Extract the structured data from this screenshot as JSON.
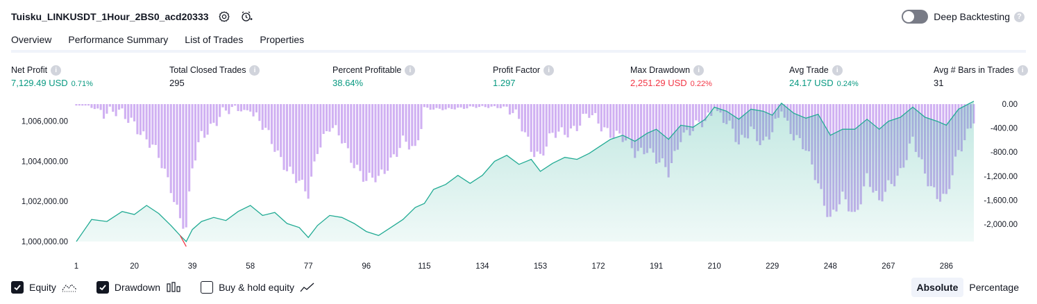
{
  "header": {
    "title": "Tuisku_LINKUSDT_1Hour_2BS0_acd20333",
    "settings_icon": "gear-icon",
    "alert_icon": "alarm-add-icon"
  },
  "deep_backtesting": {
    "label": "Deep Backtesting",
    "enabled": false,
    "help": "?"
  },
  "tabs": [
    {
      "label": "Overview",
      "active": true
    },
    {
      "label": "Performance Summary",
      "active": false
    },
    {
      "label": "List of Trades",
      "active": false
    },
    {
      "label": "Properties",
      "active": false
    }
  ],
  "stats": {
    "net_profit": {
      "label": "Net Profit",
      "value": "7,129.49 USD",
      "pct": "0.71%"
    },
    "total_closed_trades": {
      "label": "Total Closed Trades",
      "value": "295"
    },
    "percent_profitable": {
      "label": "Percent Profitable",
      "value": "38.64%"
    },
    "profit_factor": {
      "label": "Profit Factor",
      "value": "1.297"
    },
    "max_drawdown": {
      "label": "Max Drawdown",
      "value": "2,251.29 USD",
      "pct": "0.22%"
    },
    "avg_trade": {
      "label": "Avg Trade",
      "value": "24.17 USD",
      "pct": "0.24%"
    },
    "avg_bars": {
      "label": "Avg # Bars in Trades",
      "value": "31"
    }
  },
  "chart_data": {
    "type": "area",
    "x_ticks": [
      "1",
      "20",
      "39",
      "58",
      "77",
      "96",
      "115",
      "134",
      "153",
      "172",
      "191",
      "210",
      "229",
      "248",
      "267",
      "286"
    ],
    "left_ticks": [
      "1,006,000.00",
      "1,004,000.00",
      "1,002,000.00",
      "1,000,000.00"
    ],
    "left_tick_values": [
      1006000,
      1004000,
      1002000,
      1000000
    ],
    "right_ticks": [
      "0.00",
      "-400.00",
      "-800.00",
      "-1,200.00",
      "-1,600.00",
      "-2,000.00"
    ],
    "right_tick_values": [
      0,
      -400,
      -800,
      -1200,
      -1600,
      -2000
    ],
    "xlim": [
      1,
      295
    ],
    "equity_ylim": [
      1000000,
      1007200
    ],
    "drawdown_ylim": [
      -2150,
      0
    ],
    "series": [
      {
        "name": "Equity",
        "points": [
          [
            1,
            1000000
          ],
          [
            6,
            1001100
          ],
          [
            11,
            1001000
          ],
          [
            16,
            1001500
          ],
          [
            20,
            1001350
          ],
          [
            24,
            1001800
          ],
          [
            28,
            1001400
          ],
          [
            32,
            1000800
          ],
          [
            35,
            1000300
          ],
          [
            37,
            999750
          ],
          [
            39,
            1000600
          ],
          [
            42,
            1001000
          ],
          [
            46,
            1001200
          ],
          [
            50,
            1001050
          ],
          [
            54,
            1001500
          ],
          [
            58,
            1001800
          ],
          [
            62,
            1001300
          ],
          [
            66,
            1001450
          ],
          [
            70,
            1000900
          ],
          [
            74,
            1000700
          ],
          [
            77,
            1000200
          ],
          [
            80,
            1000800
          ],
          [
            84,
            1001300
          ],
          [
            88,
            1001200
          ],
          [
            92,
            1000900
          ],
          [
            96,
            1000500
          ],
          [
            100,
            1000300
          ],
          [
            104,
            1000700
          ],
          [
            108,
            1001100
          ],
          [
            112,
            1001700
          ],
          [
            115,
            1001900
          ],
          [
            118,
            1002600
          ],
          [
            122,
            1002850
          ],
          [
            126,
            1003300
          ],
          [
            130,
            1002900
          ],
          [
            134,
            1003300
          ],
          [
            138,
            1004000
          ],
          [
            142,
            1004300
          ],
          [
            146,
            1003850
          ],
          [
            150,
            1004100
          ],
          [
            153,
            1003500
          ],
          [
            157,
            1003900
          ],
          [
            161,
            1004200
          ],
          [
            165,
            1004100
          ],
          [
            169,
            1004400
          ],
          [
            172,
            1004700
          ],
          [
            176,
            1005100
          ],
          [
            180,
            1005300
          ],
          [
            184,
            1005000
          ],
          [
            188,
            1005400
          ],
          [
            191,
            1005600
          ],
          [
            195,
            1005100
          ],
          [
            199,
            1005800
          ],
          [
            203,
            1005700
          ],
          [
            207,
            1006100
          ],
          [
            210,
            1006700
          ],
          [
            214,
            1006500
          ],
          [
            218,
            1006100
          ],
          [
            222,
            1006600
          ],
          [
            226,
            1006500
          ],
          [
            229,
            1006300
          ],
          [
            232,
            1006900
          ],
          [
            236,
            1006400
          ],
          [
            240,
            1006150
          ],
          [
            244,
            1006350
          ],
          [
            248,
            1005300
          ],
          [
            252,
            1005600
          ],
          [
            256,
            1005600
          ],
          [
            260,
            1006100
          ],
          [
            264,
            1005600
          ],
          [
            267,
            1006000
          ],
          [
            271,
            1006200
          ],
          [
            275,
            1006700
          ],
          [
            279,
            1006200
          ],
          [
            283,
            1006000
          ],
          [
            286,
            1005800
          ],
          [
            290,
            1006600
          ],
          [
            295,
            1007000
          ]
        ]
      },
      {
        "name": "Drawdown",
        "points": [
          [
            1,
            0
          ],
          [
            6,
            -50
          ],
          [
            11,
            -120
          ],
          [
            16,
            -200
          ],
          [
            20,
            -280
          ],
          [
            24,
            -600
          ],
          [
            28,
            -900
          ],
          [
            32,
            -1350
          ],
          [
            35,
            -1900
          ],
          [
            37,
            -2100
          ],
          [
            39,
            -1100
          ],
          [
            42,
            -500
          ],
          [
            46,
            -300
          ],
          [
            50,
            -150
          ],
          [
            54,
            -100
          ],
          [
            58,
            -100
          ],
          [
            62,
            -400
          ],
          [
            66,
            -700
          ],
          [
            70,
            -1050
          ],
          [
            74,
            -1350
          ],
          [
            77,
            -1500
          ],
          [
            80,
            -700
          ],
          [
            84,
            -400
          ],
          [
            88,
            -600
          ],
          [
            92,
            -950
          ],
          [
            96,
            -1300
          ],
          [
            100,
            -1250
          ],
          [
            104,
            -900
          ],
          [
            108,
            -650
          ],
          [
            112,
            -800
          ],
          [
            115,
            -50
          ],
          [
            118,
            -80
          ],
          [
            122,
            -100
          ],
          [
            126,
            -60
          ],
          [
            130,
            -50
          ],
          [
            134,
            -60
          ],
          [
            138,
            -40
          ],
          [
            142,
            -50
          ],
          [
            146,
            -300
          ],
          [
            150,
            -700
          ],
          [
            153,
            -850
          ],
          [
            157,
            -550
          ],
          [
            161,
            -450
          ],
          [
            165,
            -350
          ],
          [
            169,
            -200
          ],
          [
            172,
            -300
          ],
          [
            176,
            -450
          ],
          [
            180,
            -600
          ],
          [
            184,
            -800
          ],
          [
            188,
            -700
          ],
          [
            191,
            -950
          ],
          [
            195,
            -1150
          ],
          [
            199,
            -500
          ],
          [
            203,
            -450
          ],
          [
            207,
            -300
          ],
          [
            210,
            -40
          ],
          [
            214,
            -300
          ],
          [
            218,
            -700
          ],
          [
            222,
            -350
          ],
          [
            226,
            -700
          ],
          [
            229,
            -500
          ],
          [
            232,
            -100
          ],
          [
            236,
            -500
          ],
          [
            240,
            -800
          ],
          [
            244,
            -1300
          ],
          [
            248,
            -1900
          ],
          [
            252,
            -1600
          ],
          [
            256,
            -1850
          ],
          [
            260,
            -1200
          ],
          [
            264,
            -1700
          ],
          [
            267,
            -1350
          ],
          [
            271,
            -1100
          ],
          [
            275,
            -650
          ],
          [
            279,
            -1150
          ],
          [
            283,
            -1500
          ],
          [
            286,
            -1600
          ],
          [
            290,
            -800
          ],
          [
            295,
            -200
          ]
        ]
      }
    ],
    "colors": {
      "equity_line": "#22ab94",
      "equity_fill": "#22ab94",
      "drawdown_bar": "#c8a2f0",
      "negative_line": "#f23645"
    }
  },
  "footer": {
    "checkboxes": [
      {
        "label": "Equity",
        "checked": true,
        "icon": "equity-line-icon"
      },
      {
        "label": "Drawdown",
        "checked": true,
        "icon": "drawdown-bars-icon"
      },
      {
        "label": "Buy & hold equity",
        "checked": false,
        "icon": "buy-hold-line-icon"
      }
    ],
    "modes": [
      {
        "label": "Absolute",
        "active": true
      },
      {
        "label": "Percentage",
        "active": false
      }
    ]
  }
}
